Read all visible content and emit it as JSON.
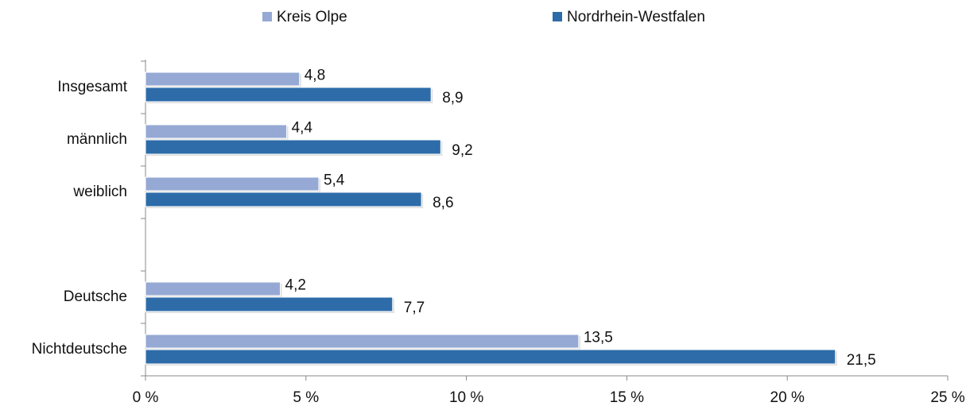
{
  "chart_data": {
    "type": "barh",
    "categories": [
      "Insgesamt",
      "männlich",
      "weiblich",
      null,
      "Deutsche",
      "Nichtdeutsche"
    ],
    "series": [
      {
        "name": "Kreis Olpe",
        "color": "#95a9d4",
        "values": [
          4.8,
          4.4,
          5.4,
          null,
          4.2,
          13.5
        ],
        "value_labels": [
          "4,8",
          "4,4",
          "5,4",
          null,
          "4,2",
          "13,5"
        ]
      },
      {
        "name": "Nordrhein-Westfalen",
        "color": "#2e6ca9",
        "values": [
          8.9,
          9.2,
          8.6,
          null,
          7.7,
          21.5
        ],
        "value_labels": [
          "8,9",
          "9,2",
          "8,6",
          null,
          "7,7",
          "21,5"
        ]
      }
    ],
    "xlim": [
      0,
      25
    ],
    "xticks": [
      {
        "value": 0,
        "label": "0 %"
      },
      {
        "value": 5,
        "label": "5 %"
      },
      {
        "value": 10,
        "label": "10 %"
      },
      {
        "value": 15,
        "label": "15 %"
      },
      {
        "value": 20,
        "label": "20 %"
      },
      {
        "value": 25,
        "label": "25 %"
      }
    ],
    "legend": "top"
  }
}
